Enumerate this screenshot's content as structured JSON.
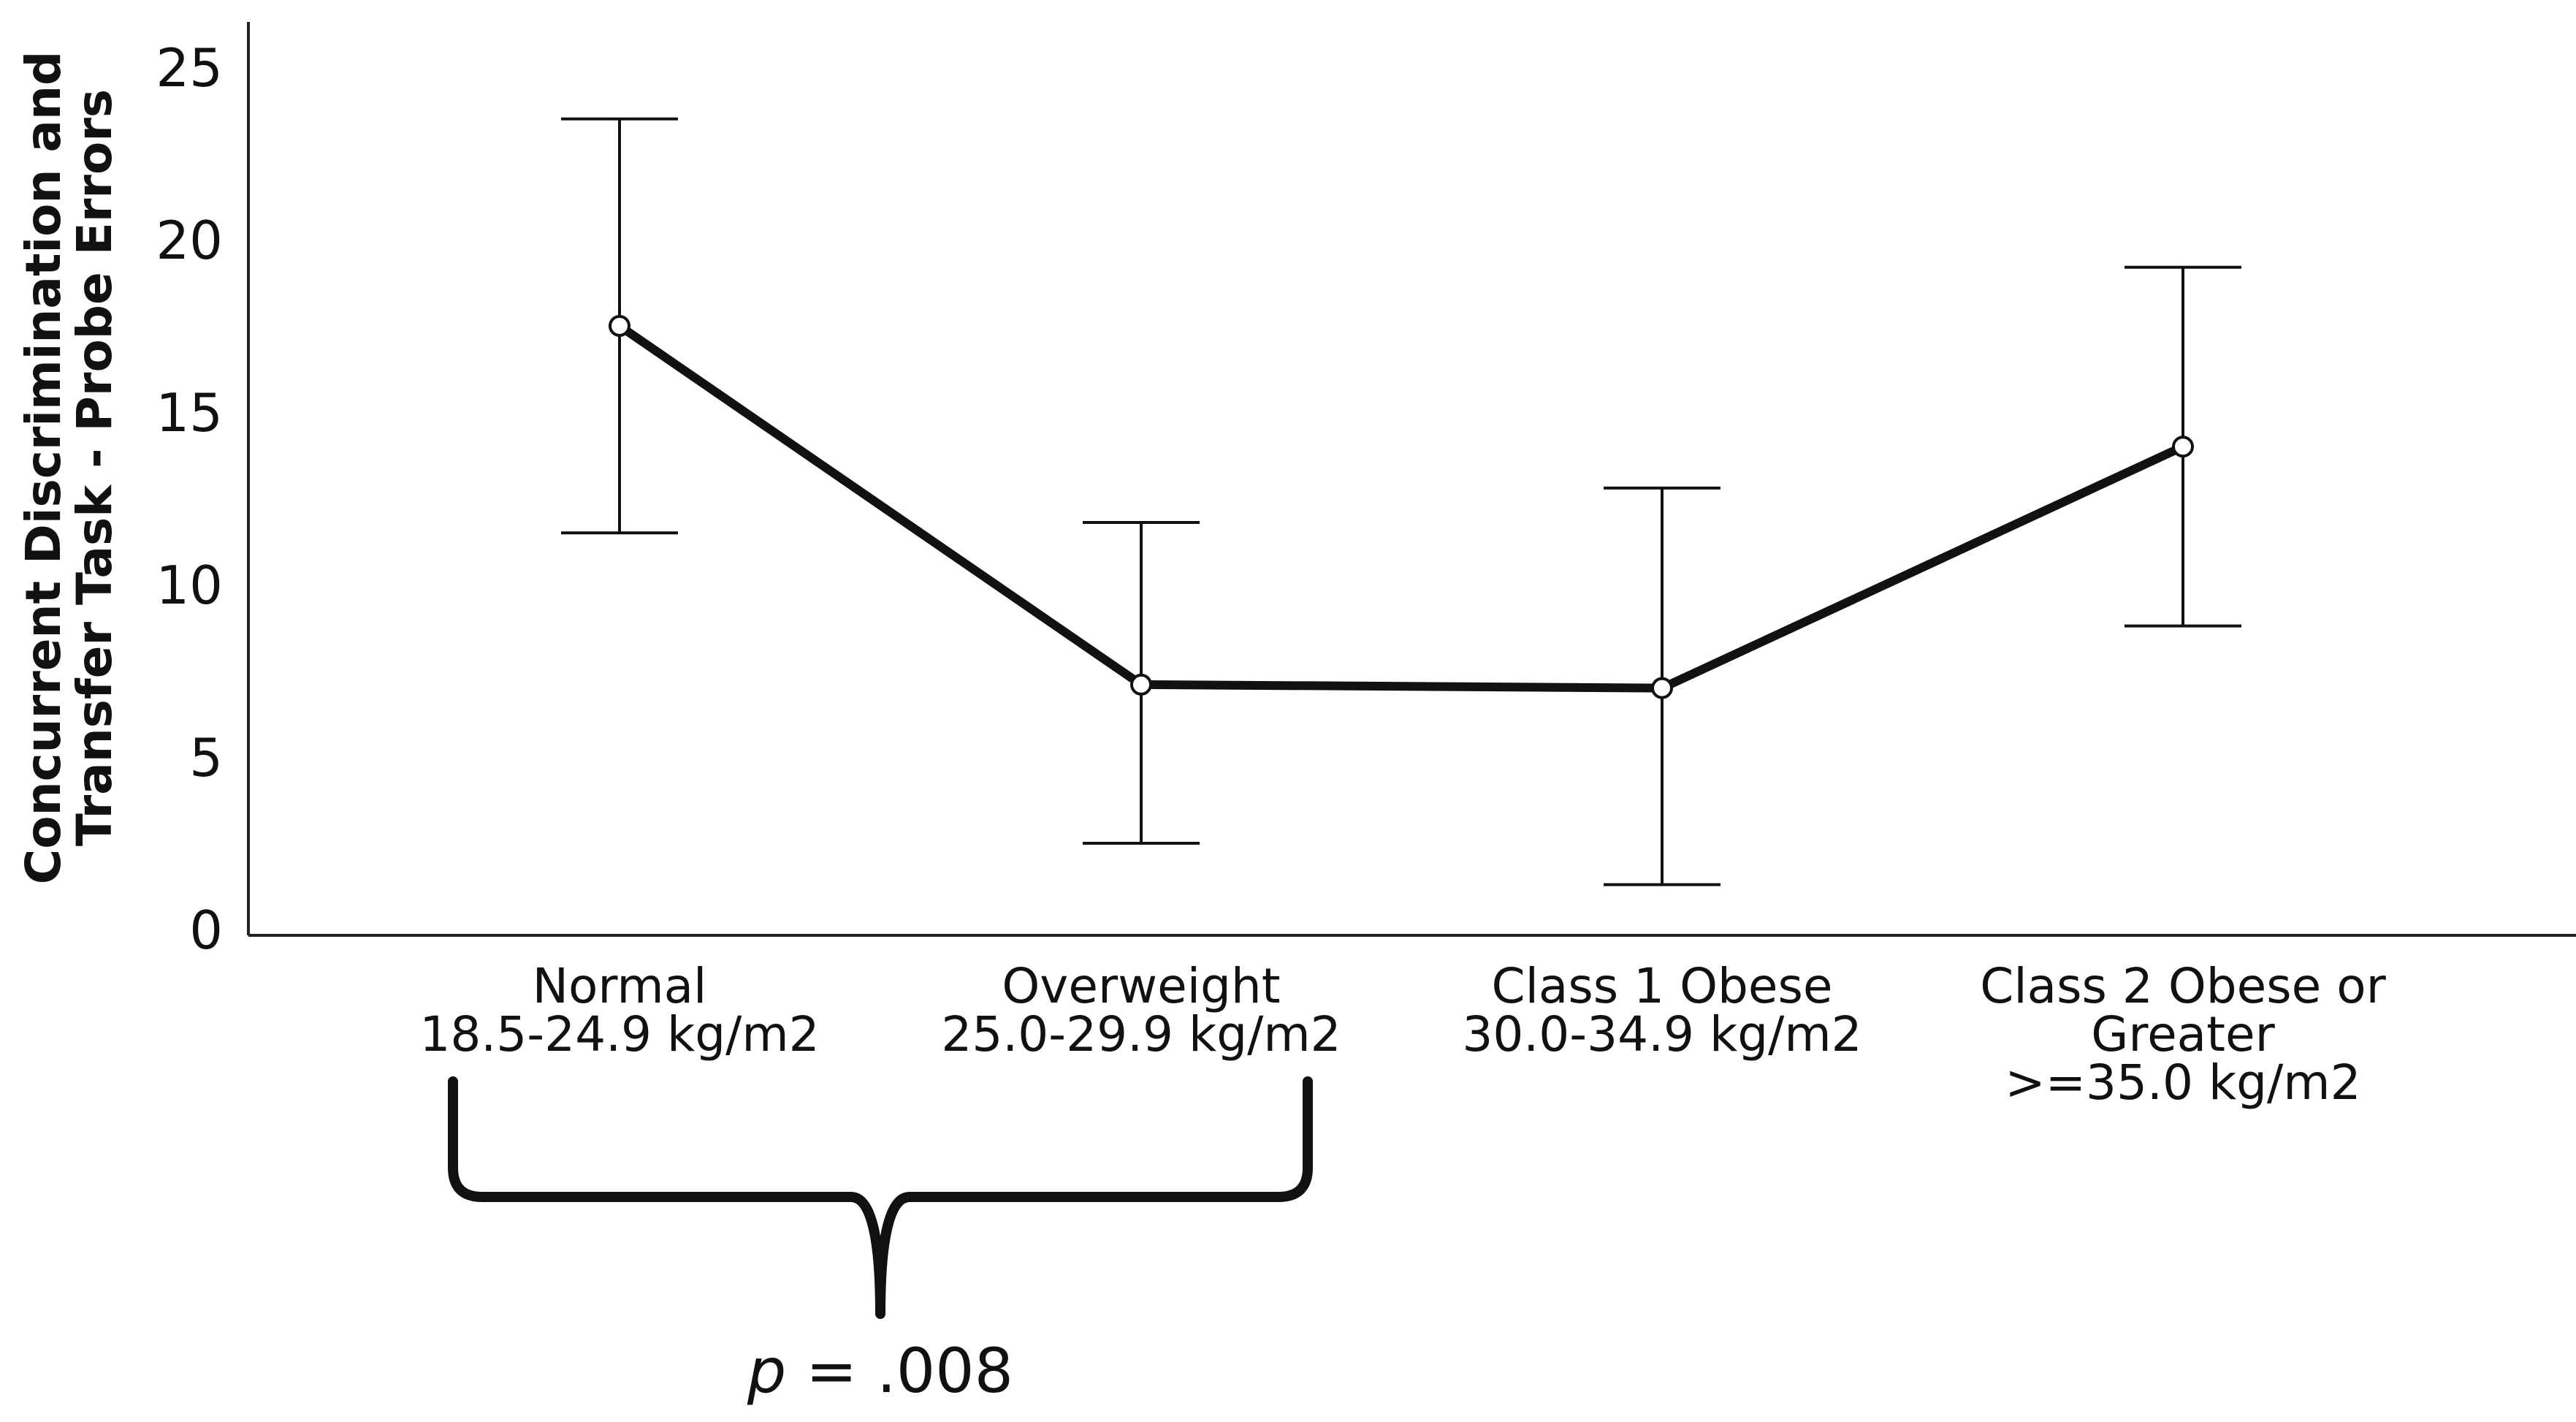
{
  "chart_data": {
    "type": "line",
    "categories": [
      [
        "Normal",
        "18.5-24.9 kg/m2"
      ],
      [
        "Overweight",
        "25.0-29.9 kg/m2"
      ],
      [
        "Class 1 Obese",
        "30.0-34.9 kg/m2"
      ],
      [
        "Class 2 Obese or",
        "Greater",
        ">=35.0 kg/m2"
      ]
    ],
    "series": [
      {
        "values": [
          17.5,
          7.1,
          7.0,
          14.0
        ],
        "error_low": [
          11.5,
          2.5,
          1.3,
          8.8
        ],
        "error_high": [
          23.5,
          11.8,
          12.8,
          19.2
        ]
      }
    ],
    "ylabel": [
      "Concurrent Discrimination and",
      "Transfer Task - Probe Errors"
    ],
    "xlabel": "",
    "ylim": [
      0,
      26
    ],
    "yticks": [
      0,
      5,
      10,
      15,
      20,
      25
    ],
    "grid": false,
    "legend": "none",
    "annotation": {
      "p_italic": "p",
      "p_rest": " = .008",
      "bracket_spans": [
        0,
        1
      ]
    },
    "colors": {
      "line": "#111111",
      "marker_fill": "#ffffff"
    }
  }
}
